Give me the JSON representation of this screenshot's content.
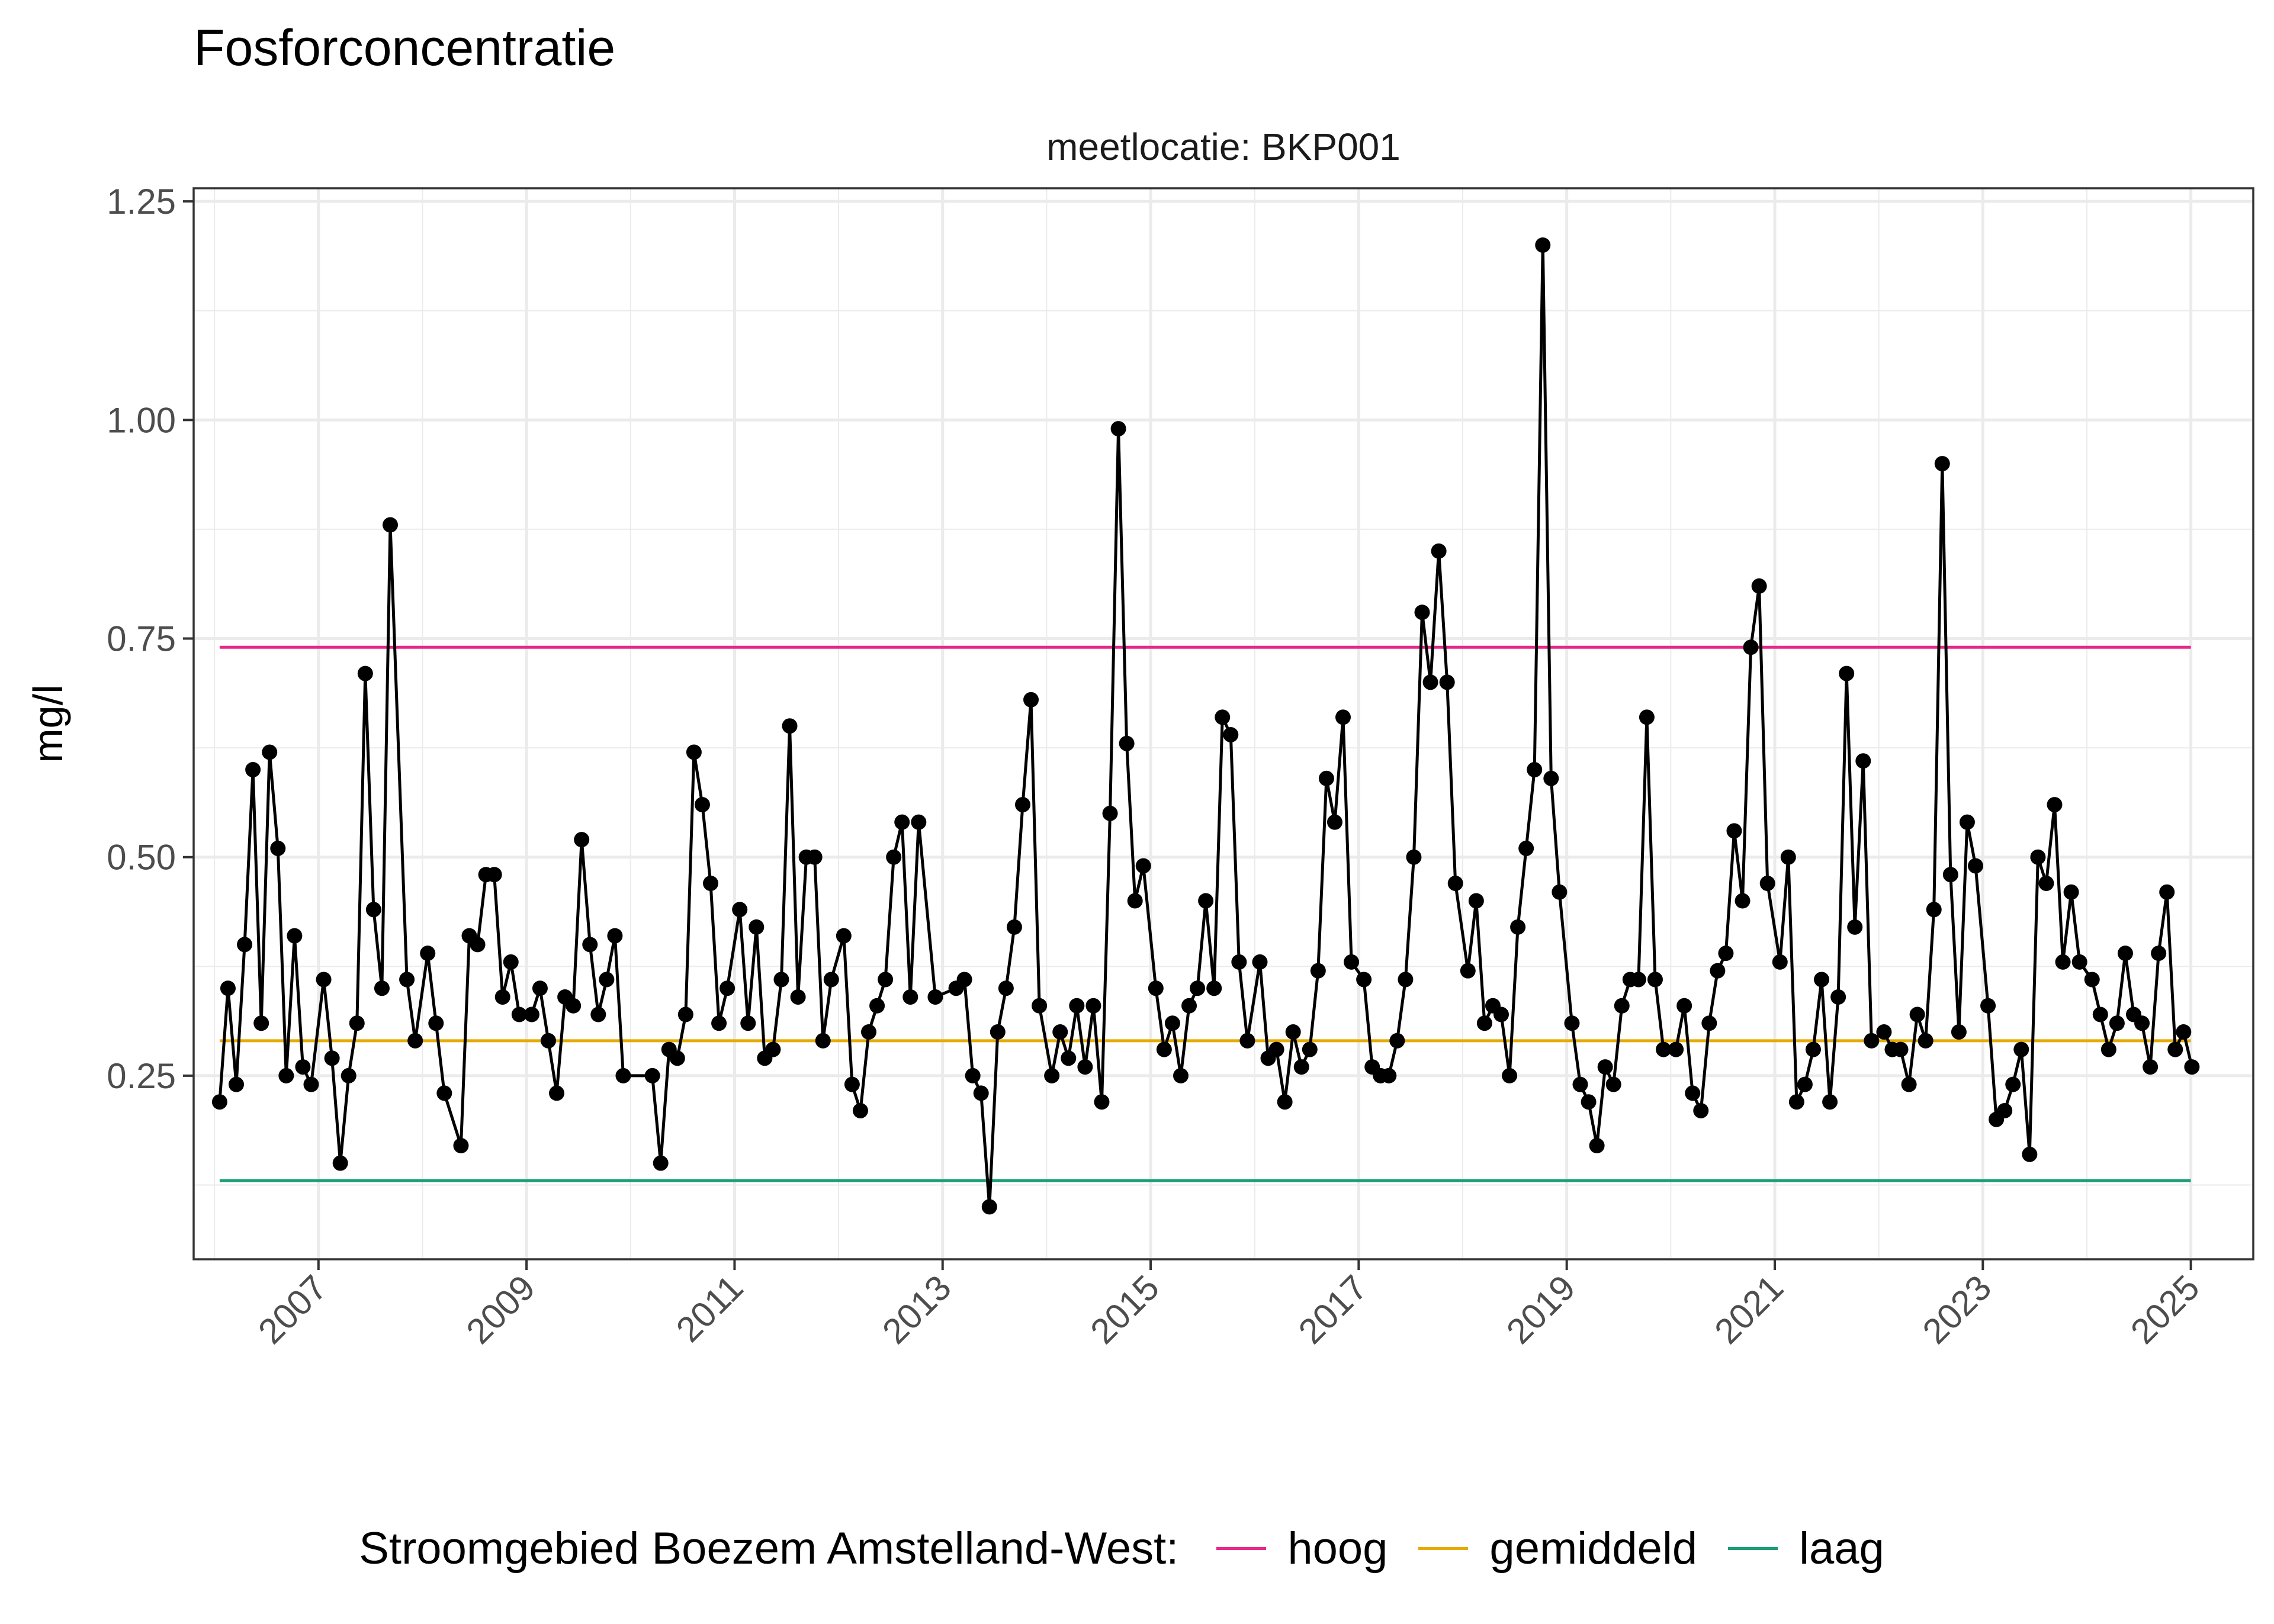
{
  "title": "Fosforconcentratie",
  "colors": {
    "hoog": "#E7298A",
    "gemiddeld": "#E6AB02",
    "laag": "#1B9E77",
    "series": "#000000"
  },
  "chart_data": {
    "type": "line",
    "title": "Fosforconcentratie",
    "facet_label": "meetlocatie: BKP001",
    "xlabel": "",
    "ylabel": "mg/l",
    "xlim": [
      2005.8,
      2025.6
    ],
    "ylim": [
      0.04,
      1.265
    ],
    "y_ticks": [
      0.25,
      0.5,
      0.75,
      1.0,
      1.25
    ],
    "y_tick_labels": [
      "0.25",
      "0.50",
      "0.75",
      "1.00",
      "1.25"
    ],
    "x_ticks": [
      2007,
      2009,
      2011,
      2013,
      2015,
      2017,
      2019,
      2021,
      2023,
      2025
    ],
    "x_tick_labels": [
      "2007",
      "2009",
      "2011",
      "2013",
      "2015",
      "2017",
      "2019",
      "2021",
      "2023",
      "2025"
    ],
    "grid": true,
    "legend_position": "bottom",
    "legend_title": "Stroomgebied Boezem Amstelland-West:",
    "reference_lines": [
      {
        "name": "hoog",
        "value": 0.74,
        "x_range": [
          2006.05,
          2025.0
        ]
      },
      {
        "name": "gemiddeld",
        "value": 0.29,
        "x_range": [
          2006.05,
          2025.0
        ]
      },
      {
        "name": "laag",
        "value": 0.13,
        "x_range": [
          2006.05,
          2025.0
        ]
      }
    ],
    "series": [
      {
        "x": [
          2006.05,
          2006.13,
          2006.21,
          2006.29,
          2006.37,
          2006.45,
          2006.53,
          2006.61,
          2006.69,
          2006.77,
          2006.85,
          2006.93,
          2007.05,
          2007.13,
          2007.21,
          2007.29,
          2007.37,
          2007.45,
          2007.53,
          2007.61,
          2007.69,
          2007.85,
          2007.93,
          2008.05,
          2008.13,
          2008.21,
          2008.37,
          2008.45,
          2008.53,
          2008.61,
          2008.69,
          2008.77,
          2008.85,
          2008.93,
          2009.05,
          2009.13,
          2009.21,
          2009.29,
          2009.37,
          2009.45,
          2009.53,
          2009.61,
          2009.69,
          2009.77,
          2009.85,
          2009.93,
          2010.21,
          2010.29,
          2010.37,
          2010.45,
          2010.53,
          2010.61,
          2010.69,
          2010.77,
          2010.85,
          2010.93,
          2011.05,
          2011.13,
          2011.21,
          2011.29,
          2011.37,
          2011.45,
          2011.53,
          2011.61,
          2011.69,
          2011.77,
          2011.85,
          2011.93,
          2012.05,
          2012.13,
          2012.21,
          2012.29,
          2012.37,
          2012.45,
          2012.53,
          2012.61,
          2012.69,
          2012.77,
          2012.93,
          2013.13,
          2013.21,
          2013.29,
          2013.37,
          2013.45,
          2013.53,
          2013.61,
          2013.69,
          2013.77,
          2013.85,
          2013.93,
          2014.05,
          2014.13,
          2014.21,
          2014.29,
          2014.37,
          2014.45,
          2014.53,
          2014.61,
          2014.69,
          2014.77,
          2014.85,
          2014.93,
          2015.05,
          2015.13,
          2015.21,
          2015.29,
          2015.37,
          2015.45,
          2015.53,
          2015.61,
          2015.69,
          2015.77,
          2015.85,
          2015.93,
          2016.05,
          2016.13,
          2016.21,
          2016.29,
          2016.37,
          2016.45,
          2016.53,
          2016.61,
          2016.69,
          2016.77,
          2016.85,
          2016.93,
          2017.05,
          2017.13,
          2017.21,
          2017.29,
          2017.37,
          2017.45,
          2017.53,
          2017.61,
          2017.69,
          2017.77,
          2017.85,
          2017.93,
          2018.05,
          2018.13,
          2018.21,
          2018.29,
          2018.37,
          2018.45,
          2018.53,
          2018.61,
          2018.69,
          2018.77,
          2018.85,
          2018.93,
          2019.05,
          2019.13,
          2019.21,
          2019.29,
          2019.37,
          2019.45,
          2019.53,
          2019.61,
          2019.69,
          2019.77,
          2019.85,
          2019.93,
          2020.05,
          2020.13,
          2020.21,
          2020.29,
          2020.37,
          2020.45,
          2020.53,
          2020.61,
          2020.69,
          2020.77,
          2020.85,
          2020.93,
          2021.05,
          2021.13,
          2021.21,
          2021.29,
          2021.37,
          2021.45,
          2021.53,
          2021.61,
          2021.69,
          2021.77,
          2021.85,
          2021.93,
          2022.05,
          2022.13,
          2022.21,
          2022.29,
          2022.37,
          2022.45,
          2022.53,
          2022.61,
          2022.69,
          2022.77,
          2022.85,
          2022.93,
          2023.05,
          2023.13,
          2023.21,
          2023.29,
          2023.37,
          2023.45,
          2023.53,
          2023.61,
          2023.69,
          2023.77,
          2023.85,
          2023.93,
          2024.05,
          2024.13,
          2024.21,
          2024.29,
          2024.37,
          2024.45,
          2024.53,
          2024.61,
          2024.69,
          2024.77,
          2024.85,
          2024.93,
          2025.01
        ],
        "y": [
          0.22,
          0.35,
          0.24,
          0.4,
          0.6,
          0.31,
          0.62,
          0.51,
          0.25,
          0.41,
          0.26,
          0.24,
          0.36,
          0.27,
          0.15,
          0.25,
          0.31,
          0.71,
          0.44,
          0.35,
          0.88,
          0.36,
          0.29,
          0.39,
          0.31,
          0.23,
          0.17,
          0.41,
          0.4,
          0.48,
          0.48,
          0.34,
          0.38,
          0.32,
          0.32,
          0.35,
          0.29,
          0.23,
          0.34,
          0.33,
          0.52,
          0.4,
          0.32,
          0.36,
          0.41,
          0.25,
          0.25,
          0.15,
          0.28,
          0.27,
          0.32,
          0.62,
          0.56,
          0.47,
          0.31,
          0.35,
          0.44,
          0.31,
          0.42,
          0.27,
          0.28,
          0.36,
          0.65,
          0.34,
          0.5,
          0.5,
          0.29,
          0.36,
          0.41,
          0.24,
          0.21,
          0.3,
          0.33,
          0.36,
          0.5,
          0.54,
          0.34,
          0.54,
          0.34,
          0.35,
          0.36,
          0.25,
          0.23,
          0.1,
          0.3,
          0.35,
          0.42,
          0.56,
          0.68,
          0.33,
          0.25,
          0.3,
          0.27,
          0.33,
          0.26,
          0.33,
          0.22,
          0.55,
          0.99,
          0.63,
          0.45,
          0.49,
          0.35,
          0.28,
          0.31,
          0.25,
          0.33,
          0.35,
          0.45,
          0.35,
          0.66,
          0.64,
          0.38,
          0.29,
          0.38,
          0.27,
          0.28,
          0.22,
          0.3,
          0.26,
          0.28,
          0.37,
          0.59,
          0.54,
          0.66,
          0.38,
          0.36,
          0.26,
          0.25,
          0.25,
          0.29,
          0.36,
          0.5,
          0.78,
          0.7,
          0.85,
          0.7,
          0.47,
          0.37,
          0.45,
          0.31,
          0.33,
          0.32,
          0.25,
          0.42,
          0.51,
          0.6,
          1.2,
          0.59,
          0.46,
          0.31,
          0.24,
          0.22,
          0.17,
          0.26,
          0.24,
          0.33,
          0.36,
          0.36,
          0.66,
          0.36,
          0.28,
          0.28,
          0.33,
          0.23,
          0.21,
          0.31,
          0.37,
          0.39,
          0.53,
          0.45,
          0.74,
          0.81,
          0.47,
          0.38,
          0.5,
          0.22,
          0.24,
          0.28,
          0.36,
          0.22,
          0.34,
          0.71,
          0.42,
          0.61,
          0.29,
          0.3,
          0.28,
          0.28,
          0.24,
          0.32,
          0.29,
          0.44,
          0.95,
          0.48,
          0.3,
          0.54,
          0.49,
          0.33,
          0.2,
          0.21,
          0.24,
          0.28,
          0.16,
          0.5,
          0.47,
          0.56,
          0.38,
          0.46,
          0.38,
          0.36,
          0.32,
          0.28,
          0.31,
          0.39,
          0.32,
          0.31,
          0.26,
          0.39,
          0.46,
          0.28,
          0.3,
          0.26
        ]
      }
    ]
  }
}
